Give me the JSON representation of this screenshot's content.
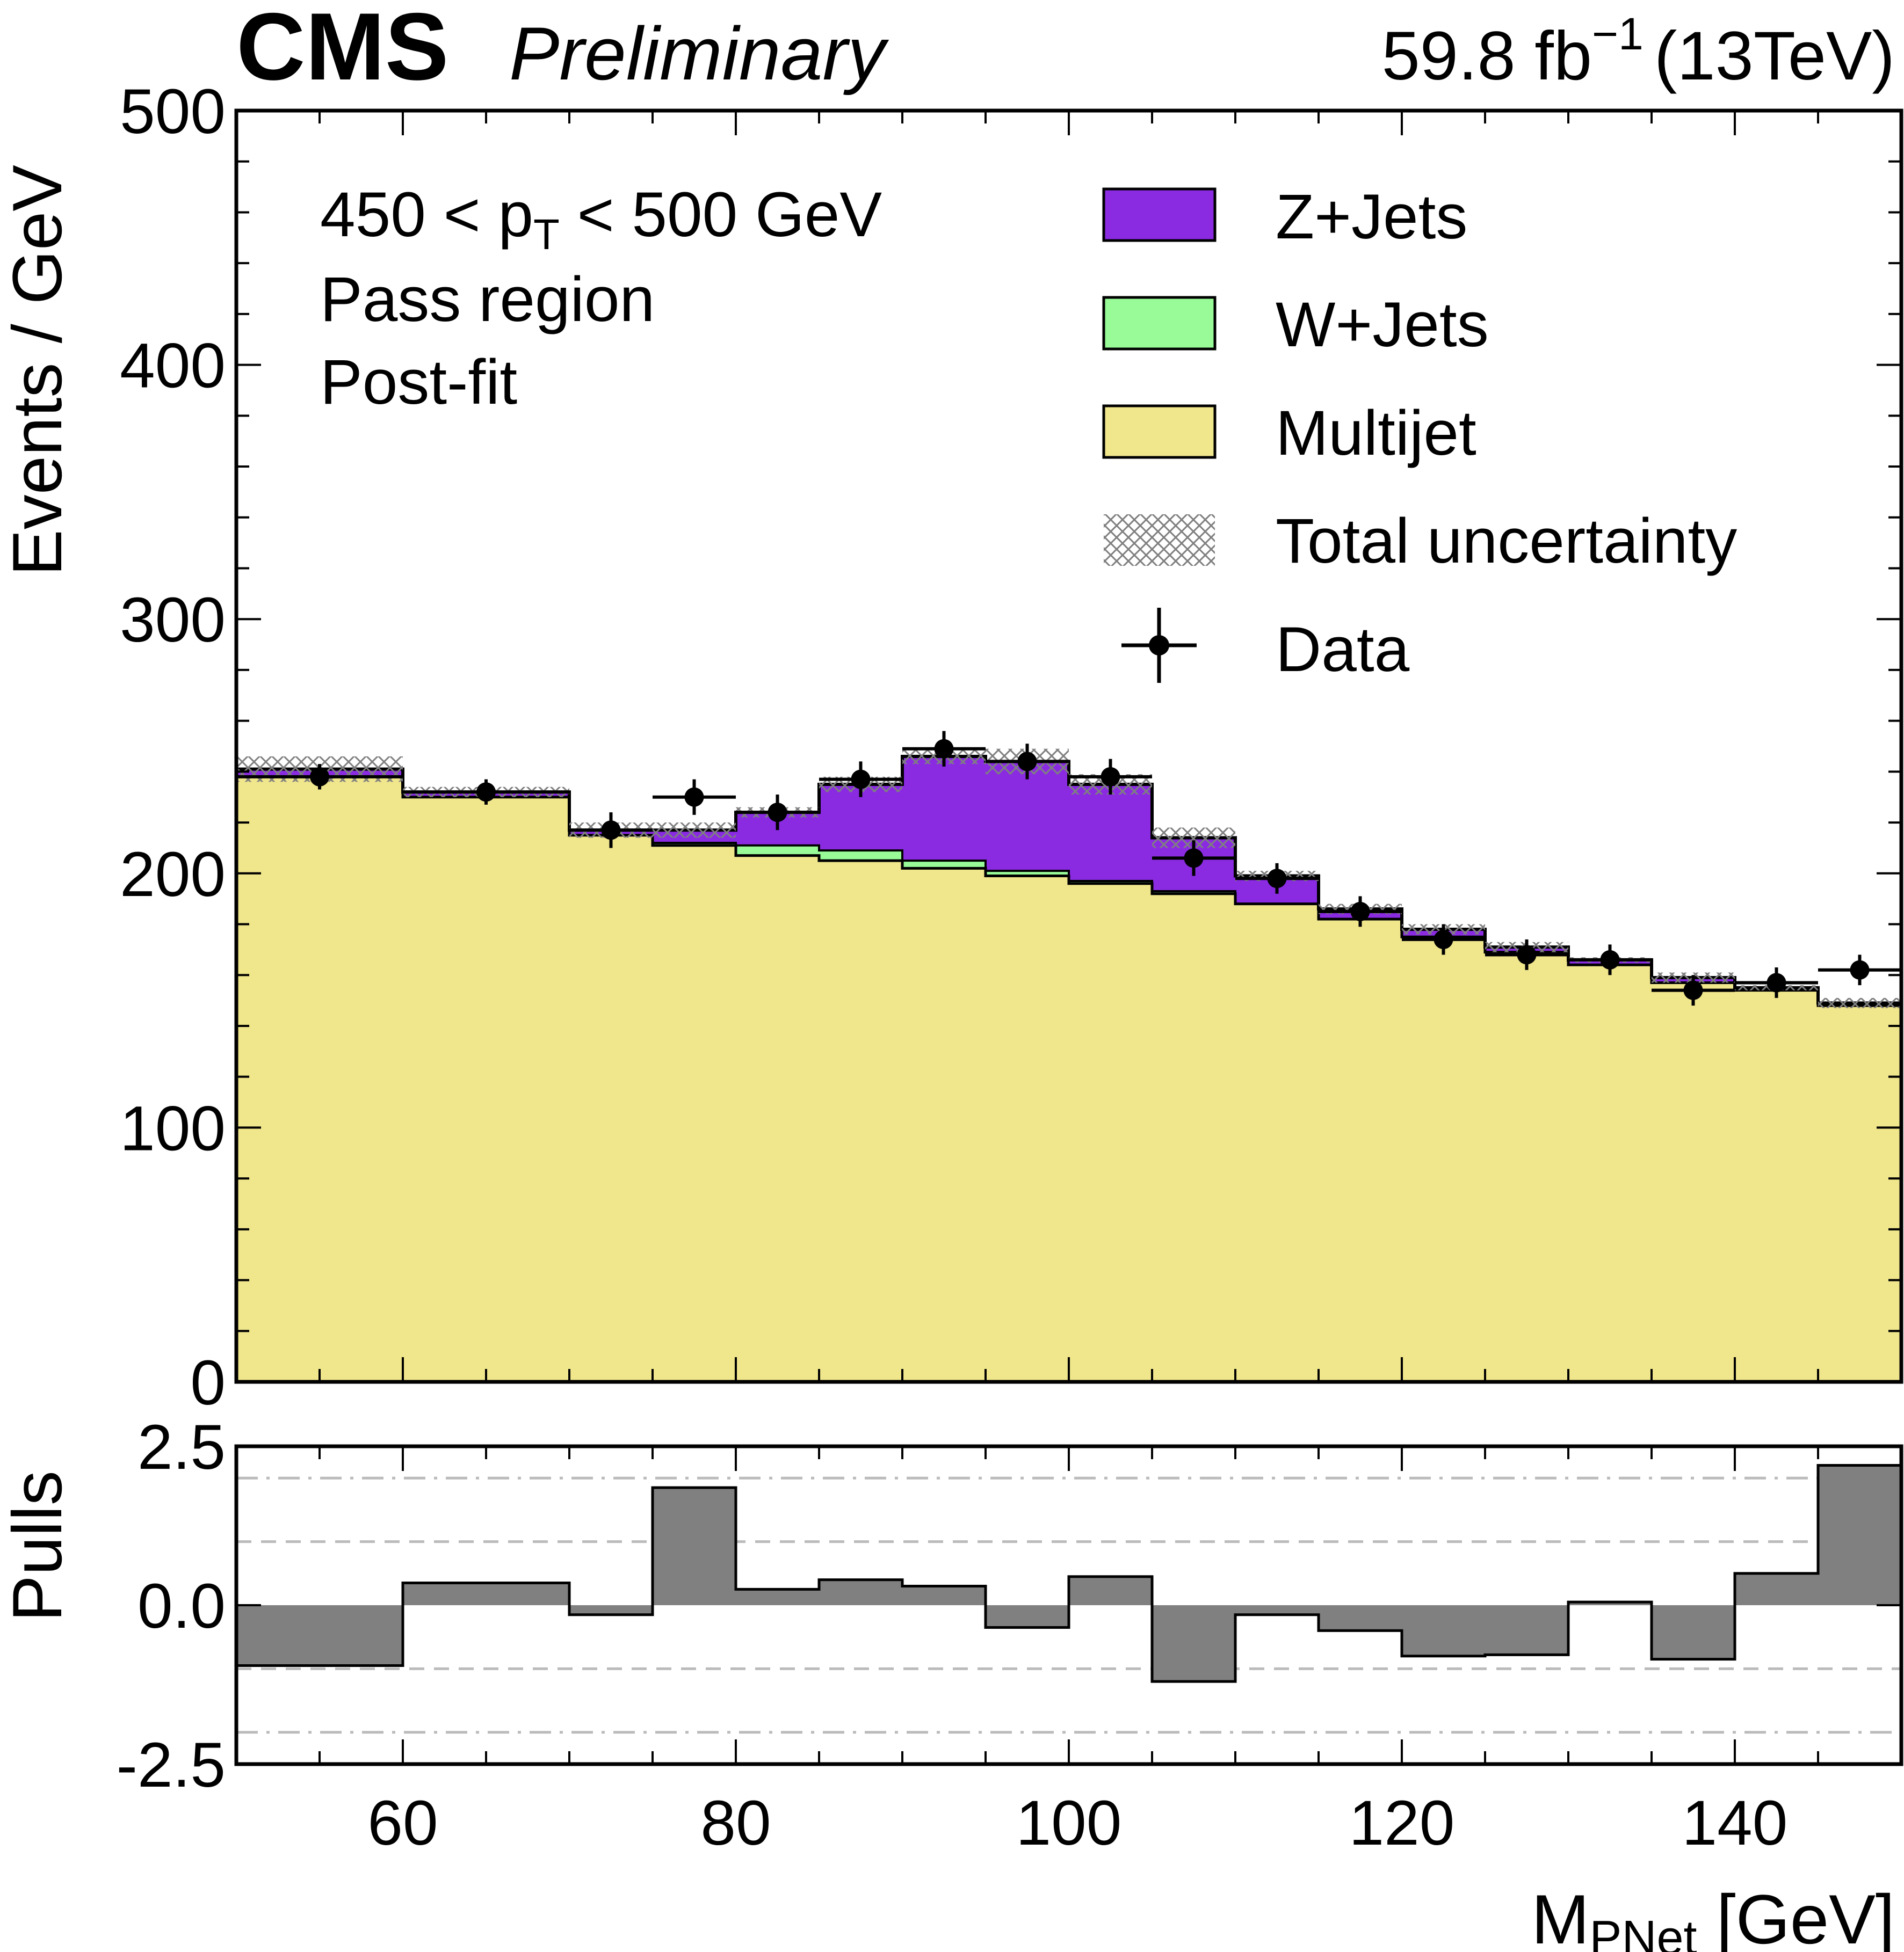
{
  "header": {
    "experiment": "CMS",
    "status": "Preliminary",
    "lumi_value": "59.8 fb",
    "lumi_exp": "−1",
    "energy": "(13TeV)"
  },
  "annotations": {
    "pt_left": "450 < p",
    "pt_sub": "T",
    "pt_right": " < 500 GeV",
    "region": "Pass region",
    "fit": "Post-fit"
  },
  "legend": {
    "zjets": "Z+Jets",
    "wjets": "W+Jets",
    "multijet": "Multijet",
    "unc": "Total uncertainty",
    "data": "Data"
  },
  "colors": {
    "zjets": "#8a2be2",
    "wjets": "#98fb98",
    "multijet": "#f0e68c",
    "unc": "#7f7f7f",
    "pulls": "#808080",
    "grid": "#bbbbbb"
  },
  "chart_data": [
    {
      "type": "bar",
      "title": "Events / GeV vs M_PNet",
      "xlabel": "M_PNet [GeV]",
      "ylabel": "Events / GeV",
      "xlim": [
        50,
        150
      ],
      "ylim": [
        0,
        500
      ],
      "x_ticks": [
        60,
        80,
        100,
        120,
        140
      ],
      "y_ticks": [
        0,
        100,
        200,
        300,
        400,
        500
      ],
      "bin_edges": [
        50,
        60,
        70,
        75,
        80,
        85,
        90,
        95,
        100,
        105,
        110,
        115,
        120,
        125,
        130,
        135,
        140,
        145,
        150
      ],
      "series": [
        {
          "name": "Multijet",
          "stack_top": [
            238,
            230,
            215,
            211,
            207,
            205,
            202,
            199,
            196,
            192,
            188,
            182,
            175,
            169,
            164,
            157,
            154,
            148
          ]
        },
        {
          "name": "W+Jets",
          "stack_top": [
            238,
            230,
            215,
            212,
            211,
            209,
            205,
            201,
            197,
            193,
            188,
            182,
            175,
            169,
            164,
            157,
            154,
            148
          ]
        },
        {
          "name": "Z+Jets",
          "stack_top": [
            241,
            232,
            217,
            217,
            224,
            235,
            246,
            244,
            235,
            214,
            199,
            186,
            178,
            171,
            166,
            159,
            155,
            149
          ]
        },
        {
          "name": "Total uncertainty",
          "half_width": [
            5,
            2,
            3,
            3,
            2,
            3,
            3,
            5,
            4,
            4,
            2,
            2,
            2,
            2,
            1,
            2,
            1,
            2
          ]
        },
        {
          "name": "Data",
          "x": [
            55,
            65,
            72.5,
            77.5,
            82.5,
            87.5,
            92.5,
            97.5,
            102.5,
            107.5,
            112.5,
            117.5,
            122.5,
            127.5,
            132.5,
            137.5,
            142.5,
            147.5
          ],
          "values": [
            238,
            232,
            217,
            230,
            224,
            237,
            249,
            244,
            238,
            206,
            198,
            185,
            174,
            168,
            166,
            154,
            157,
            162
          ],
          "errors": [
            5,
            5,
            7,
            7,
            7,
            7,
            7,
            7,
            7,
            7,
            6,
            6,
            6,
            6,
            6,
            6,
            6,
            6
          ]
        }
      ]
    },
    {
      "type": "bar",
      "title": "Pulls",
      "xlabel": "M_PNet [GeV]",
      "ylabel": "Pulls",
      "xlim": [
        50,
        150
      ],
      "ylim": [
        -2.5,
        2.5
      ],
      "y_ticks": [
        -2.5,
        0.0,
        2.5
      ],
      "y_tick_labels": [
        "-2.5",
        "0.0",
        "2.5"
      ],
      "reference_lines": [
        -2,
        -1,
        1,
        2
      ],
      "bin_edges": [
        50,
        60,
        70,
        75,
        80,
        85,
        90,
        95,
        100,
        105,
        110,
        115,
        120,
        125,
        130,
        135,
        140,
        145,
        150
      ],
      "values": [
        -0.95,
        0.35,
        -0.15,
        1.85,
        0.25,
        0.4,
        0.3,
        -0.35,
        0.45,
        -1.2,
        -0.15,
        -0.4,
        -0.8,
        -0.78,
        0.05,
        -0.85,
        0.5,
        2.2
      ]
    }
  ]
}
